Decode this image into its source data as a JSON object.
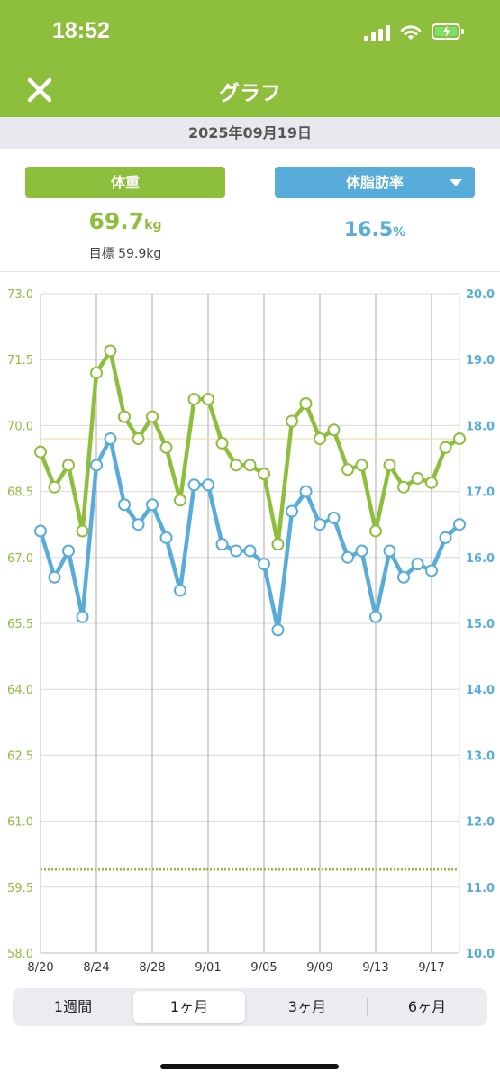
{
  "status_bar": {
    "time": "18:52"
  },
  "header": {
    "title": "グラフ",
    "close_icon": "close-icon"
  },
  "date": "2025年09月19日",
  "summary": {
    "weight": {
      "label": "体重",
      "value": "69.7",
      "unit": "kg",
      "target": "目標 59.9kg"
    },
    "body_fat": {
      "label": "体脂肪率",
      "value": "16.5",
      "unit": "%"
    }
  },
  "colors": {
    "weight": "#8dbe3c",
    "body_fat": "#58acd9",
    "header": "#8dbe3c"
  },
  "tabs": [
    {
      "label": "1週間",
      "active": false
    },
    {
      "label": "1ヶ月",
      "active": true
    },
    {
      "label": "3ヶ月",
      "active": false
    },
    {
      "label": "6ヶ月",
      "active": false
    }
  ],
  "chart_data": {
    "type": "line",
    "x": [
      "8/20",
      "8/21",
      "8/22",
      "8/23",
      "8/24",
      "8/25",
      "8/26",
      "8/27",
      "8/28",
      "8/29",
      "8/30",
      "8/31",
      "9/01",
      "9/02",
      "9/03",
      "9/04",
      "9/05",
      "9/06",
      "9/07",
      "9/08",
      "9/09",
      "9/10",
      "9/11",
      "9/12",
      "9/13",
      "9/14",
      "9/15",
      "9/16",
      "9/17",
      "9/18",
      "9/19"
    ],
    "x_tick_labels": [
      "8/20",
      "8/24",
      "8/28",
      "9/01",
      "9/05",
      "9/09",
      "9/13",
      "9/17"
    ],
    "series": [
      {
        "axis": "left",
        "color": "#8dbe3c",
        "values": [
          69.4,
          68.6,
          69.1,
          67.6,
          71.2,
          71.7,
          70.2,
          69.7,
          70.2,
          69.5,
          68.3,
          70.6,
          70.6,
          69.6,
          69.1,
          69.1,
          68.9,
          67.3,
          70.1,
          70.5,
          69.7,
          69.9,
          69.0,
          69.1,
          67.6,
          69.1,
          68.6,
          68.8,
          68.7,
          69.5,
          69.7
        ]
      },
      {
        "axis": "right",
        "color": "#58acd9",
        "values": [
          16.4,
          15.7,
          16.1,
          15.1,
          17.4,
          17.8,
          16.8,
          16.5,
          16.8,
          16.3,
          15.5,
          17.1,
          17.1,
          16.2,
          16.1,
          16.1,
          15.9,
          14.9,
          16.7,
          17.0,
          16.5,
          16.6,
          16.0,
          16.1,
          15.1,
          16.1,
          15.7,
          15.9,
          15.8,
          16.3,
          16.5
        ]
      }
    ],
    "y_left": {
      "range": [
        58.0,
        73.0
      ],
      "ticks": [
        "73.0",
        "71.5",
        "70.0",
        "68.5",
        "67.0",
        "65.5",
        "64.0",
        "62.5",
        "61.0",
        "59.5",
        "58.0"
      ]
    },
    "y_right": {
      "range": [
        10.0,
        20.0
      ],
      "ticks": [
        "20.0",
        "19.0",
        "18.0",
        "17.0",
        "16.0",
        "15.0",
        "14.0",
        "13.0",
        "12.0",
        "11.0",
        "10.0"
      ]
    },
    "reference_lines": [
      {
        "axis": "left",
        "value": 59.9,
        "style": "dotted",
        "color": "#8dbe3c"
      },
      {
        "axis": "left",
        "value": 69.7,
        "style": "solid",
        "color": "#f2dfa5"
      }
    ],
    "grid": true
  }
}
